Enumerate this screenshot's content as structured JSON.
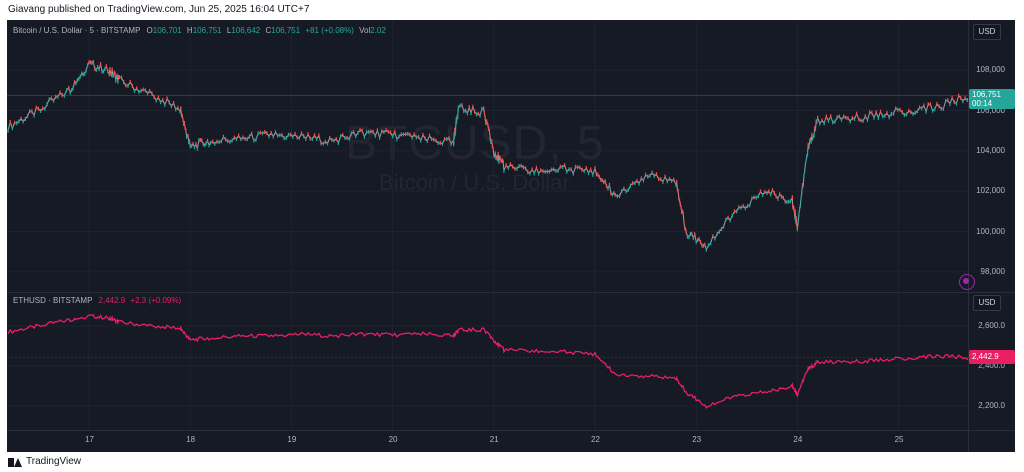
{
  "header": {
    "published_text": "Giavang published on TradingView.com, Jun 25, 2025 16:04 UTC+7"
  },
  "footer": {
    "brand": "TradingView"
  },
  "pane_btc": {
    "symbol_title": "Bitcoin / U.S. Dollar · 5 · BITSTAMP",
    "o_label": "O",
    "o_value": "106,701",
    "h_label": "H",
    "h_value": "106,751",
    "l_label": "L",
    "l_value": "106,642",
    "c_label": "C",
    "c_value": "106,751",
    "change": "+81 (+0.08%)",
    "vol_label": "Vol",
    "vol_value": "2.02",
    "currency": "USD",
    "watermark_ticker": "BTCUSD, 5",
    "watermark_name": "Bitcoin / U.S. Dollar",
    "last_price_label": "106,751",
    "countdown": "00:14",
    "y_ticks": [
      "108,000",
      "106,000",
      "104,000",
      "102,000",
      "100,000",
      "98,000"
    ],
    "color": "#26a69a"
  },
  "pane_eth": {
    "symbol_title": "ETHUSD · BITSTAMP",
    "value": "2,442.9",
    "change": "+2.3 (+0.09%)",
    "currency": "USD",
    "last_price_label": "2,442.9",
    "y_ticks": [
      "2,600.0",
      "2,400.0",
      "2,200.0"
    ],
    "color": "#e91e63"
  },
  "x_axis": {
    "ticks": [
      "17",
      "18",
      "19",
      "20",
      "21",
      "22",
      "23",
      "24",
      "25"
    ]
  },
  "chart_data": [
    {
      "type": "line",
      "title": "Bitcoin / U.S. Dollar · 5 · BITSTAMP",
      "ylabel": "USD",
      "ylim": [
        97500,
        109500
      ],
      "x_ticks": [
        "17",
        "18",
        "19",
        "20",
        "21",
        "22",
        "23",
        "24",
        "25"
      ],
      "x": [
        16.2,
        16.5,
        16.8,
        17.0,
        17.2,
        17.3,
        17.6,
        17.9,
        18.0,
        18.2,
        18.5,
        18.8,
        19.1,
        19.4,
        19.7,
        20.0,
        20.3,
        20.6,
        20.65,
        20.9,
        21.0,
        21.1,
        21.4,
        21.7,
        22.0,
        22.2,
        22.5,
        22.8,
        22.9,
        23.1,
        23.4,
        23.7,
        23.95,
        24.0,
        24.1,
        24.2,
        24.5,
        24.8,
        25.1,
        25.4,
        25.7
      ],
      "series": [
        {
          "values": [
            105200,
            106000,
            107000,
            108300,
            108000,
            107500,
            106800,
            106100,
            104200,
            104500,
            104600,
            104800,
            104700,
            104500,
            104900,
            104800,
            104600,
            104400,
            106100,
            105900,
            104000,
            103200,
            103000,
            103100,
            103000,
            101800,
            102800,
            102500,
            100000,
            99300,
            101000,
            102000,
            101500,
            100300,
            104000,
            105500,
            105600,
            105800,
            106000,
            106200,
            106751
          ]
        }
      ]
    },
    {
      "type": "line",
      "title": "ETHUSD · BITSTAMP",
      "ylabel": "USD",
      "ylim": [
        2120,
        2680
      ],
      "x_ticks": [
        "17",
        "18",
        "19",
        "20",
        "21",
        "22",
        "23",
        "24",
        "25"
      ],
      "x": [
        16.2,
        16.5,
        16.8,
        17.0,
        17.2,
        17.3,
        17.6,
        17.9,
        18.0,
        18.2,
        18.5,
        18.8,
        19.1,
        19.4,
        19.7,
        20.0,
        20.3,
        20.6,
        20.65,
        20.9,
        21.0,
        21.1,
        21.4,
        21.7,
        22.0,
        22.2,
        22.5,
        22.8,
        22.9,
        23.1,
        23.4,
        23.7,
        23.95,
        24.0,
        24.1,
        24.2,
        24.5,
        24.8,
        25.1,
        25.4,
        25.7
      ],
      "series": [
        {
          "values": [
            2570,
            2600,
            2630,
            2650,
            2640,
            2620,
            2600,
            2590,
            2530,
            2540,
            2550,
            2550,
            2560,
            2550,
            2560,
            2555,
            2560,
            2550,
            2580,
            2580,
            2530,
            2480,
            2475,
            2470,
            2460,
            2360,
            2350,
            2340,
            2270,
            2200,
            2250,
            2270,
            2300,
            2260,
            2380,
            2420,
            2420,
            2430,
            2440,
            2450,
            2442.9
          ]
        }
      ]
    }
  ]
}
